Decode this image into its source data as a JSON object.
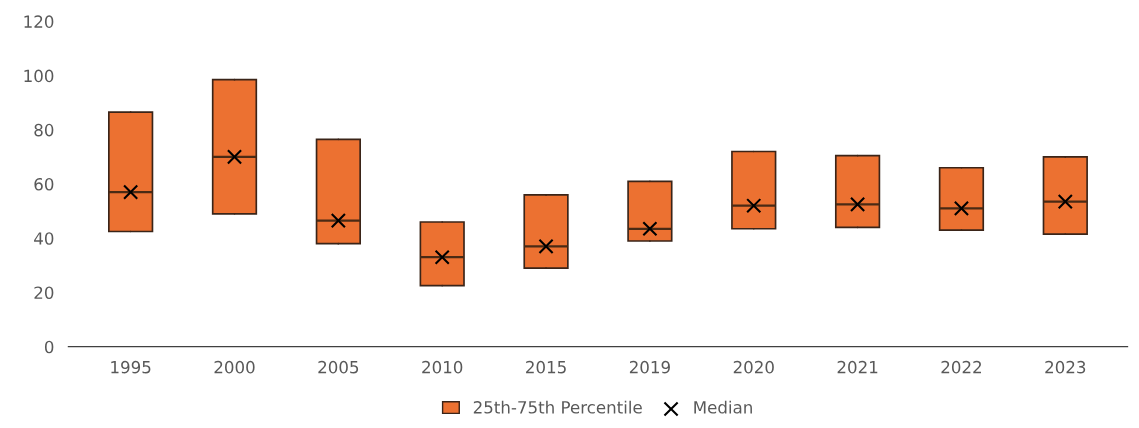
{
  "chart_data": {
    "type": "box",
    "categories": [
      "1995",
      "2000",
      "2005",
      "2010",
      "2015",
      "2019",
      "2020",
      "2021",
      "2022",
      "2023"
    ],
    "series": [
      {
        "name": "25th-75th Percentile",
        "color": "#ec7131",
        "boxes": [
          {
            "low": 42.5,
            "q1": 42.5,
            "median": 57,
            "q3": 86.5,
            "high": 86.5
          },
          {
            "low": 49,
            "q1": 49,
            "median": 70,
            "q3": 98.5,
            "high": 98.5
          },
          {
            "low": 38,
            "q1": 38,
            "median": 46.5,
            "q3": 76.5,
            "high": 76.5
          },
          {
            "low": 22.5,
            "q1": 22.5,
            "median": 33,
            "q3": 46,
            "high": 46
          },
          {
            "low": 29,
            "q1": 29,
            "median": 37,
            "q3": 56,
            "high": 56
          },
          {
            "low": 39,
            "q1": 39,
            "median": 43.5,
            "q3": 61,
            "high": 61
          },
          {
            "low": 43.5,
            "q1": 43.5,
            "median": 52,
            "q3": 72,
            "high": 72
          },
          {
            "low": 44,
            "q1": 44,
            "median": 52.5,
            "q3": 70.5,
            "high": 70.5
          },
          {
            "low": 43,
            "q1": 43,
            "median": 51,
            "q3": 66,
            "high": 66
          },
          {
            "low": 41.5,
            "q1": 41.5,
            "median": 53.5,
            "q3": 70,
            "high": 70
          }
        ]
      },
      {
        "name": "Median",
        "type": "scatter",
        "color": "#000000",
        "marker": "cross",
        "values": [
          57,
          70,
          46.5,
          33,
          37,
          43.5,
          52,
          52.5,
          51,
          53.5
        ]
      }
    ],
    "ylim": [
      0,
      120
    ],
    "yticks": [
      0,
      20,
      40,
      60,
      80,
      100,
      120
    ],
    "grid": false,
    "legend": "bottom"
  }
}
